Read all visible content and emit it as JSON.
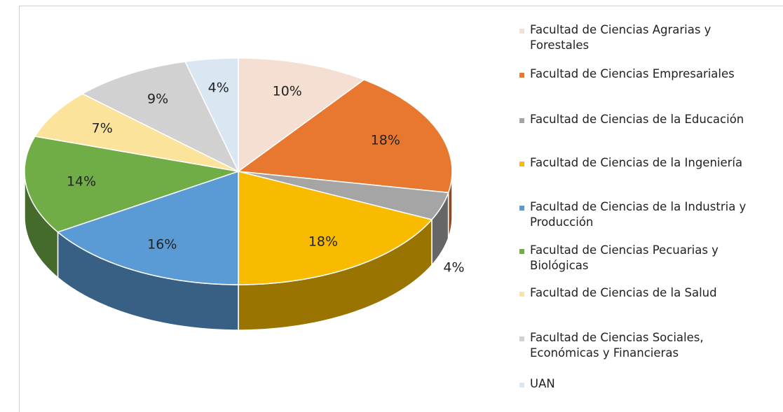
{
  "chart_data": {
    "type": "pie3d",
    "categories": [
      "Facultad de Ciencias Agrarias y Forestales",
      "Facultad de Ciencias Empresariales",
      "Facultad de Ciencias de la Educación",
      "Facultad de Ciencias de la Ingeniería",
      "Facultad de Ciencias de la Industria y Producción",
      "Facultad de Ciencias Pecuarias y Biológicas",
      "Facultad de Ciencias de la Salud",
      "Facultad de Ciencias Sociales, Económicas y Financieras",
      "UAN"
    ],
    "values": [
      10,
      18,
      4,
      18,
      16,
      14,
      7,
      9,
      4
    ],
    "value_labels": [
      "10%",
      "18%",
      "4%",
      "18%",
      "16%",
      "14%",
      "7%",
      "9%",
      "4%"
    ],
    "colors": [
      "#f4dfd2",
      "#e8782f",
      "#a5a5a5",
      "#f9bb00",
      "#5b9bd5",
      "#70ad47",
      "#fbe39c",
      "#d1d1d1",
      "#dbe6f3"
    ],
    "legend": "right"
  }
}
